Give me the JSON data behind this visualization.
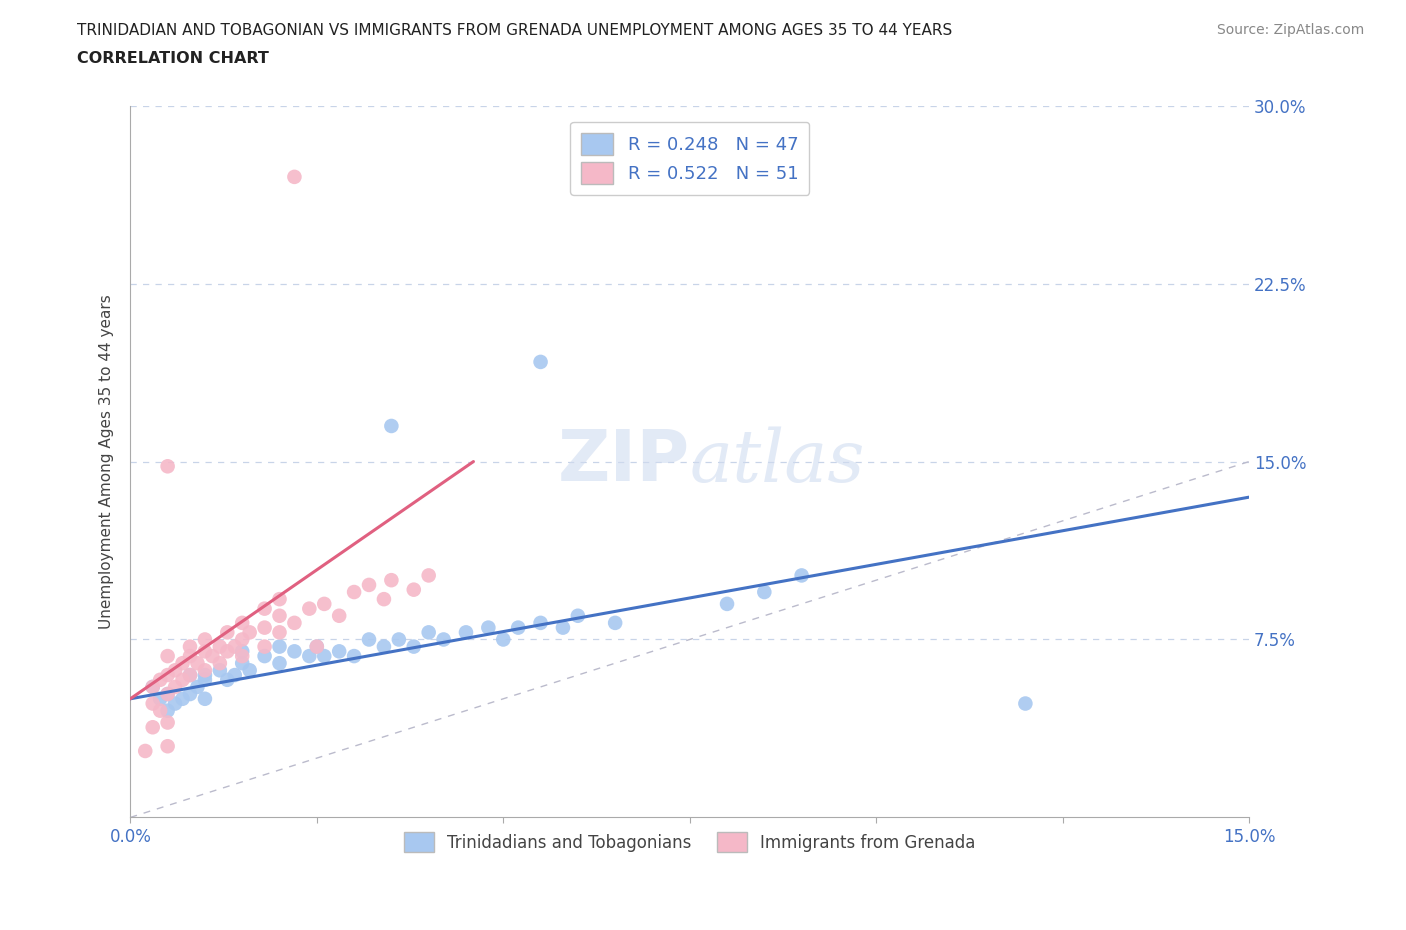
{
  "title_line1": "TRINIDADIAN AND TOBAGONIAN VS IMMIGRANTS FROM GRENADA UNEMPLOYMENT AMONG AGES 35 TO 44 YEARS",
  "title_line2": "CORRELATION CHART",
  "source": "Source: ZipAtlas.com",
  "ylabel_label": "Unemployment Among Ages 35 to 44 years",
  "xlim": [
    0.0,
    0.15
  ],
  "ylim": [
    0.0,
    0.3
  ],
  "blue_R": 0.248,
  "blue_N": 47,
  "pink_R": 0.522,
  "pink_N": 51,
  "blue_color": "#A8C8F0",
  "pink_color": "#F5B8C8",
  "blue_line_color": "#4472C4",
  "pink_line_color": "#E06080",
  "diagonal_color": "#BBBBCC",
  "grid_color": "#C8D4E8",
  "background_color": "#FFFFFF",
  "watermark_zip": "ZIP",
  "watermark_atlas": "atlas",
  "blue_line_x": [
    0.0,
    0.15
  ],
  "blue_line_y": [
    0.05,
    0.135
  ],
  "pink_line_x": [
    0.0,
    0.046
  ],
  "pink_line_y": [
    0.05,
    0.15
  ],
  "blue_scatter": [
    [
      0.003,
      0.055
    ],
    [
      0.004,
      0.05
    ],
    [
      0.005,
      0.045
    ],
    [
      0.005,
      0.052
    ],
    [
      0.006,
      0.048
    ],
    [
      0.007,
      0.05
    ],
    [
      0.008,
      0.052
    ],
    [
      0.008,
      0.06
    ],
    [
      0.009,
      0.055
    ],
    [
      0.01,
      0.05
    ],
    [
      0.01,
      0.06
    ],
    [
      0.01,
      0.058
    ],
    [
      0.012,
      0.062
    ],
    [
      0.013,
      0.058
    ],
    [
      0.014,
      0.06
    ],
    [
      0.015,
      0.065
    ],
    [
      0.015,
      0.07
    ],
    [
      0.016,
      0.062
    ],
    [
      0.018,
      0.068
    ],
    [
      0.02,
      0.065
    ],
    [
      0.02,
      0.072
    ],
    [
      0.022,
      0.07
    ],
    [
      0.024,
      0.068
    ],
    [
      0.025,
      0.072
    ],
    [
      0.026,
      0.068
    ],
    [
      0.028,
      0.07
    ],
    [
      0.03,
      0.068
    ],
    [
      0.032,
      0.075
    ],
    [
      0.034,
      0.072
    ],
    [
      0.036,
      0.075
    ],
    [
      0.038,
      0.072
    ],
    [
      0.04,
      0.078
    ],
    [
      0.042,
      0.075
    ],
    [
      0.045,
      0.078
    ],
    [
      0.048,
      0.08
    ],
    [
      0.05,
      0.075
    ],
    [
      0.052,
      0.08
    ],
    [
      0.055,
      0.082
    ],
    [
      0.058,
      0.08
    ],
    [
      0.06,
      0.085
    ],
    [
      0.065,
      0.082
    ],
    [
      0.035,
      0.165
    ],
    [
      0.055,
      0.192
    ],
    [
      0.08,
      0.09
    ],
    [
      0.085,
      0.095
    ],
    [
      0.12,
      0.048
    ],
    [
      0.09,
      0.102
    ]
  ],
  "pink_scatter": [
    [
      0.002,
      0.028
    ],
    [
      0.003,
      0.038
    ],
    [
      0.003,
      0.048
    ],
    [
      0.003,
      0.055
    ],
    [
      0.004,
      0.045
    ],
    [
      0.004,
      0.058
    ],
    [
      0.005,
      0.04
    ],
    [
      0.005,
      0.052
    ],
    [
      0.005,
      0.06
    ],
    [
      0.005,
      0.068
    ],
    [
      0.006,
      0.055
    ],
    [
      0.006,
      0.062
    ],
    [
      0.007,
      0.058
    ],
    [
      0.007,
      0.065
    ],
    [
      0.008,
      0.06
    ],
    [
      0.008,
      0.068
    ],
    [
      0.008,
      0.072
    ],
    [
      0.009,
      0.065
    ],
    [
      0.01,
      0.062
    ],
    [
      0.01,
      0.07
    ],
    [
      0.01,
      0.075
    ],
    [
      0.011,
      0.068
    ],
    [
      0.012,
      0.065
    ],
    [
      0.012,
      0.072
    ],
    [
      0.013,
      0.07
    ],
    [
      0.013,
      0.078
    ],
    [
      0.014,
      0.072
    ],
    [
      0.015,
      0.068
    ],
    [
      0.015,
      0.075
    ],
    [
      0.015,
      0.082
    ],
    [
      0.016,
      0.078
    ],
    [
      0.018,
      0.072
    ],
    [
      0.018,
      0.08
    ],
    [
      0.018,
      0.088
    ],
    [
      0.02,
      0.078
    ],
    [
      0.02,
      0.085
    ],
    [
      0.02,
      0.092
    ],
    [
      0.022,
      0.082
    ],
    [
      0.024,
      0.088
    ],
    [
      0.025,
      0.072
    ],
    [
      0.026,
      0.09
    ],
    [
      0.028,
      0.085
    ],
    [
      0.03,
      0.095
    ],
    [
      0.032,
      0.098
    ],
    [
      0.034,
      0.092
    ],
    [
      0.035,
      0.1
    ],
    [
      0.038,
      0.096
    ],
    [
      0.04,
      0.102
    ],
    [
      0.005,
      0.148
    ],
    [
      0.022,
      0.27
    ],
    [
      0.005,
      0.03
    ]
  ]
}
